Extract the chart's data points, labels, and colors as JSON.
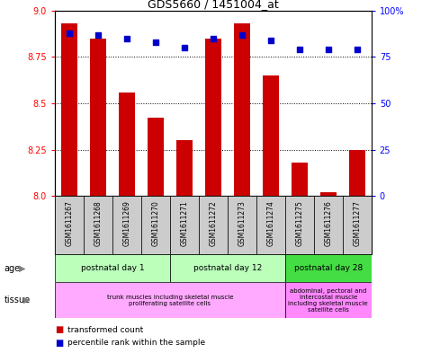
{
  "title": "GDS5660 / 1451004_at",
  "samples": [
    "GSM1611267",
    "GSM1611268",
    "GSM1611269",
    "GSM1611270",
    "GSM1611271",
    "GSM1611272",
    "GSM1611273",
    "GSM1611274",
    "GSM1611275",
    "GSM1611276",
    "GSM1611277"
  ],
  "transformed_count": [
    8.93,
    8.85,
    8.56,
    8.42,
    8.3,
    8.85,
    8.93,
    8.65,
    8.18,
    8.02,
    8.25
  ],
  "percentile_rank": [
    88,
    87,
    85,
    83,
    80,
    85,
    87,
    84,
    79,
    79,
    79
  ],
  "ylim_left": [
    8.0,
    9.0
  ],
  "ylim_right": [
    0,
    100
  ],
  "yticks_left": [
    8.0,
    8.25,
    8.5,
    8.75,
    9.0
  ],
  "yticks_right": [
    0,
    25,
    50,
    75,
    100
  ],
  "bar_color": "#CC0000",
  "dot_color": "#0000CC",
  "age_boundaries": [
    {
      "xstart": 0,
      "xend": 3,
      "label": "postnatal day 1",
      "color": "#bbffbb"
    },
    {
      "xstart": 4,
      "xend": 7,
      "label": "postnatal day 12",
      "color": "#bbffbb"
    },
    {
      "xstart": 8,
      "xend": 10,
      "label": "postnatal day 28",
      "color": "#44ee44"
    }
  ],
  "tissue_boundaries": [
    {
      "xstart": 0,
      "xend": 7,
      "label": "trunk muscles including skeletal muscle\nproliferating satellite cells",
      "color": "#ffaaff"
    },
    {
      "xstart": 8,
      "xend": 10,
      "label": "abdominal, pectoral and\nintercostal muscle\nincluding skeletal muscle\nsatellite cells",
      "color": "#ff88ff"
    }
  ],
  "chart_bg": "#dddddd",
  "xlabel_bg": "#cccccc",
  "left_label_color": "#888888"
}
